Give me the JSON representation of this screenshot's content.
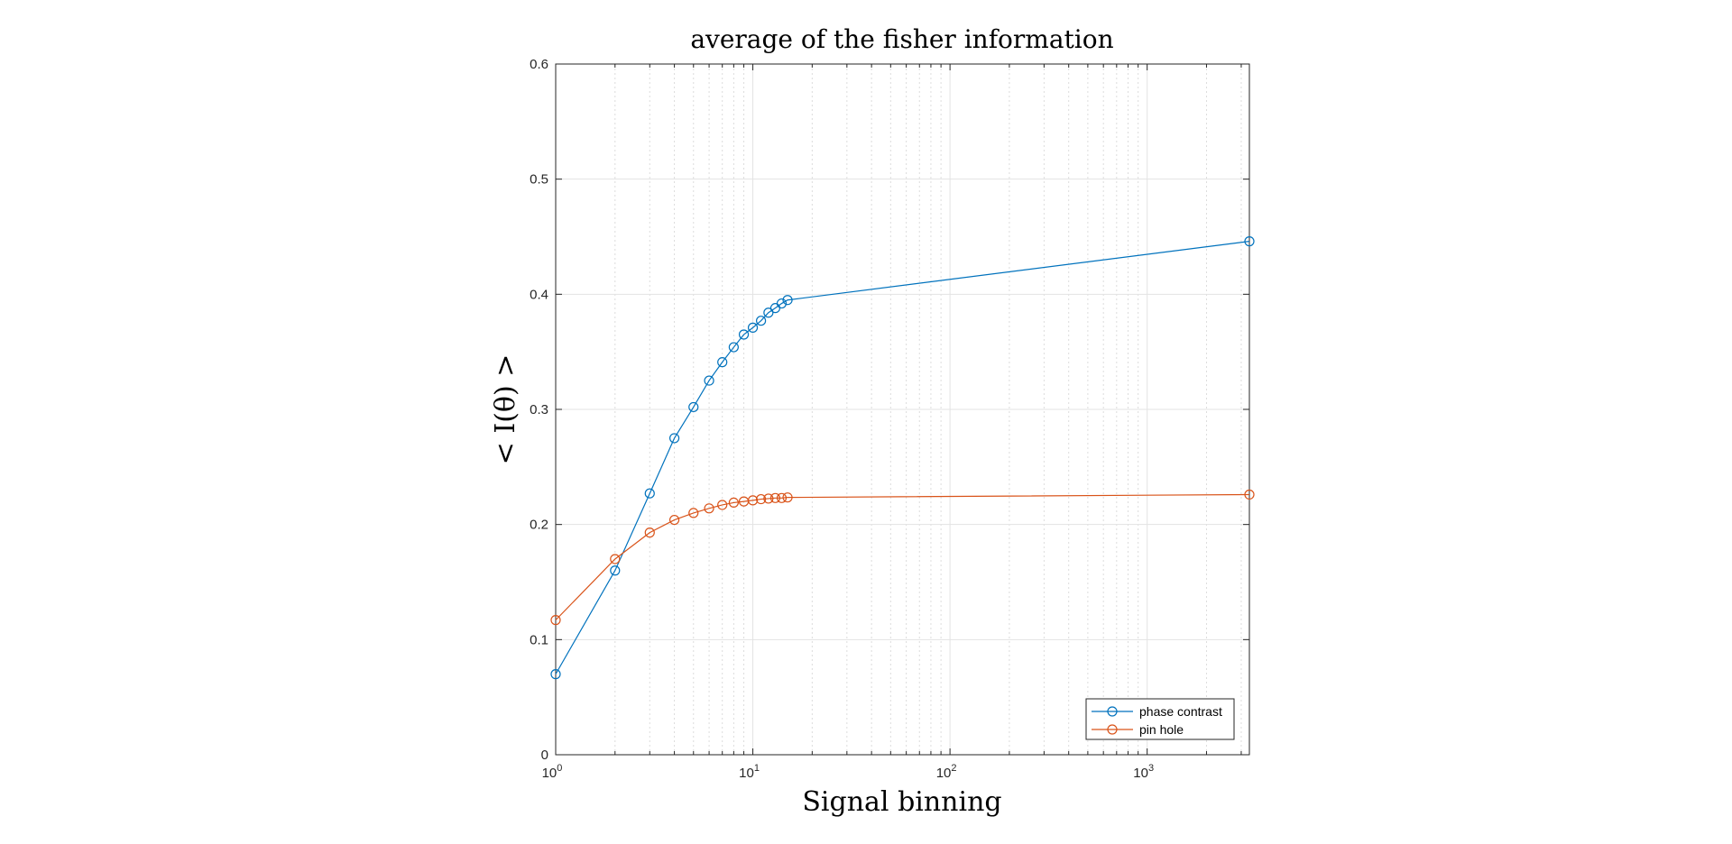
{
  "chart_data": {
    "type": "line",
    "title": "average of the fisher information",
    "xlabel": "Signal binning",
    "ylabel": "< I(θ) >",
    "xscale": "log",
    "xlim": [
      1,
      3300
    ],
    "ylim": [
      0,
      0.6
    ],
    "x_ticks": [
      {
        "value": 1,
        "base": "10",
        "exp": "0"
      },
      {
        "value": 10,
        "base": "10",
        "exp": "1"
      },
      {
        "value": 100,
        "base": "10",
        "exp": "2"
      },
      {
        "value": 1000,
        "base": "10",
        "exp": "3"
      }
    ],
    "y_ticks": [
      "0",
      "0.1",
      "0.2",
      "0.3",
      "0.4",
      "0.5",
      "0.6"
    ],
    "grid": true,
    "minor_grid": true,
    "legend_position": "bottom-right",
    "marker": "circle",
    "series": [
      {
        "name": "phase contrast",
        "color": "#0072BD",
        "x": [
          1,
          2,
          3,
          4,
          5,
          6,
          7,
          8,
          9,
          10,
          11,
          12,
          13,
          14,
          15,
          3300
        ],
        "y": [
          0.07,
          0.16,
          0.227,
          0.275,
          0.302,
          0.325,
          0.341,
          0.354,
          0.365,
          0.371,
          0.377,
          0.384,
          0.388,
          0.392,
          0.395,
          0.446
        ]
      },
      {
        "name": "pin hole",
        "color": "#D95319",
        "x": [
          1,
          2,
          3,
          4,
          5,
          6,
          7,
          8,
          9,
          10,
          11,
          12,
          13,
          14,
          15,
          3300
        ],
        "y": [
          0.117,
          0.17,
          0.193,
          0.204,
          0.21,
          0.214,
          0.217,
          0.219,
          0.22,
          0.221,
          0.222,
          0.2225,
          0.223,
          0.223,
          0.2235,
          0.226
        ]
      }
    ]
  }
}
